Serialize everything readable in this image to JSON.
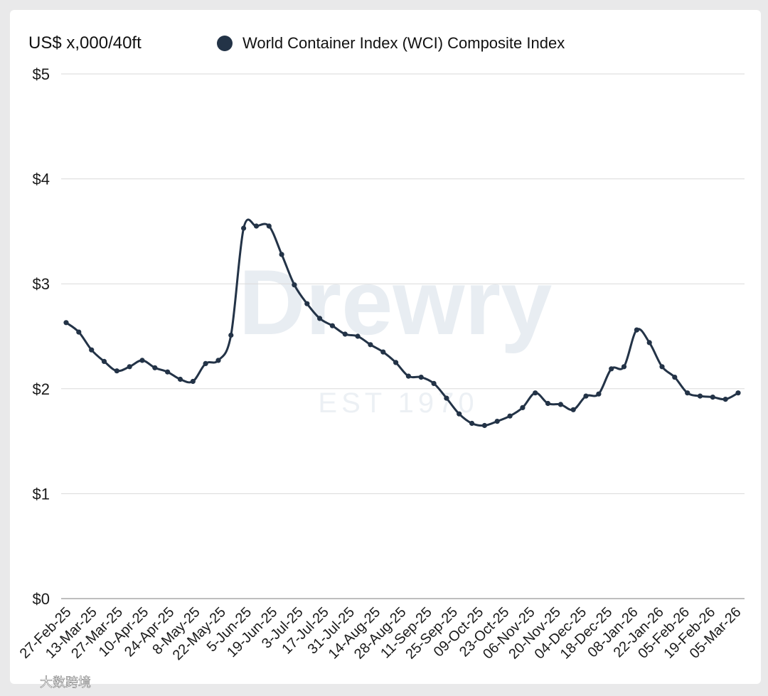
{
  "chart_data": {
    "type": "line",
    "ylabel": "US$ x,000/40ft",
    "ylim": [
      0,
      5
    ],
    "yticks": [
      0,
      1,
      2,
      3,
      4,
      5
    ],
    "ytick_labels": [
      "$0",
      "$1",
      "$2",
      "$3",
      "$4",
      "$5"
    ],
    "grid": "horizontal",
    "legend_position": "top",
    "xtick_labels": [
      "27-Feb-25",
      "13-Mar-25",
      "27-Mar-25",
      "10-Apr-25",
      "24-Apr-25",
      "8-May-25",
      "22-May-25",
      "5-Jun-25",
      "19-Jun-25",
      "3-Jul-25",
      "17-Jul-25",
      "31-Jul-25",
      "14-Aug-25",
      "28-Aug-25",
      "11-Sep-25",
      "25-Sep-25",
      "09-Oct-25",
      "23-Oct-25",
      "06-Nov-25",
      "20-Nov-25",
      "04-Dec-25",
      "18-Dec-25",
      "08-Jan-26",
      "22-Jan-26",
      "05-Feb-26",
      "19-Feb-26",
      "05-Mar-26"
    ],
    "series": [
      {
        "name": "World Container Index (WCI) Composite Index",
        "color": "#233347",
        "values": [
          2.63,
          2.54,
          2.37,
          2.26,
          2.17,
          2.21,
          2.27,
          2.2,
          2.16,
          2.09,
          2.07,
          2.24,
          2.27,
          2.51,
          3.53,
          3.55,
          3.55,
          3.28,
          2.99,
          2.81,
          2.67,
          2.6,
          2.52,
          2.5,
          2.42,
          2.35,
          2.25,
          2.12,
          2.11,
          2.05,
          1.91,
          1.76,
          1.67,
          1.65,
          1.69,
          1.74,
          1.82,
          1.96,
          1.86,
          1.85,
          1.8,
          1.93,
          1.95,
          2.19,
          2.21,
          2.56,
          2.44,
          2.21,
          2.11,
          1.96,
          1.93,
          1.92,
          1.9,
          1.96
        ]
      }
    ]
  },
  "watermark": {
    "brand": "Drewry",
    "tagline": "EST 1970"
  },
  "credit": "大数跨境"
}
